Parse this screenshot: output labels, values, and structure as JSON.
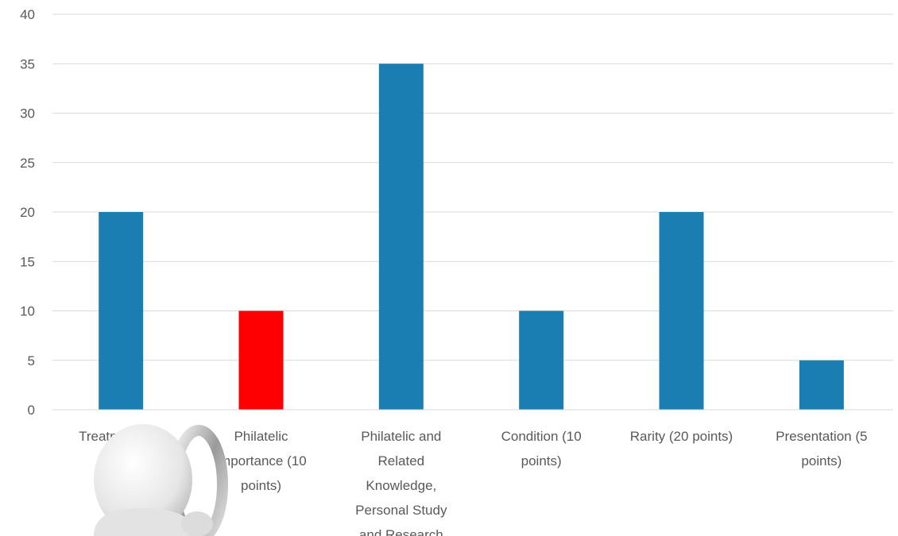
{
  "chart_data": {
    "type": "bar",
    "title": "",
    "xlabel": "",
    "ylabel": "",
    "ylim": [
      0,
      40
    ],
    "yticks": [
      0,
      5,
      10,
      15,
      20,
      25,
      30,
      35,
      40
    ],
    "grid": true,
    "legend": "none",
    "categories": [
      "Treatment (20 points)",
      "Philatelic Importance (10 points)",
      "Philatelic and Related Knowledge, Personal Study and Research",
      "Condition (10 points)",
      "Rarity (20 points)",
      "Presentation (5 points)"
    ],
    "values": [
      20,
      10,
      35,
      10,
      20,
      5
    ],
    "colors": [
      "#1a7fb0",
      "#ff0000",
      "#1a7fb0",
      "#1a7fb0",
      "#1a7fb0",
      "#1a7fb0"
    ],
    "overlay_icon": "thinking-figure-icon"
  }
}
